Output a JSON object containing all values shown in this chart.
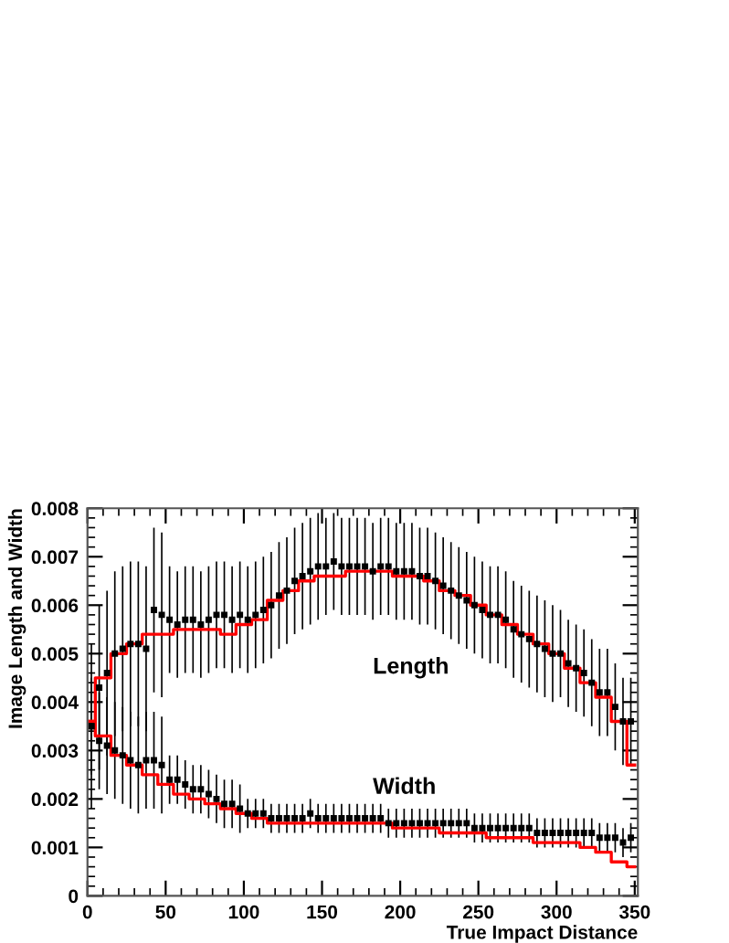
{
  "chart_data": {
    "type": "scatter",
    "xlabel": "True Impact Distance",
    "ylabel": "Image Length and Width",
    "xlim": [
      0,
      352
    ],
    "ylim": [
      0,
      0.008
    ],
    "xticks": [
      0,
      50,
      100,
      150,
      200,
      250,
      300,
      350
    ],
    "yticks": [
      0,
      0.001,
      0.002,
      0.003,
      0.004,
      0.005,
      0.006,
      0.007,
      0.008
    ],
    "grid": false,
    "series": [
      {
        "name": "Length",
        "marker": "square",
        "color": "#000000",
        "x": [
          2.5,
          7.5,
          12.5,
          17.5,
          22.5,
          27.5,
          32.5,
          37.5,
          42.5,
          47.5,
          52.5,
          57.5,
          62.5,
          67.5,
          72.5,
          77.5,
          82.5,
          87.5,
          92.5,
          97.5,
          102.5,
          107.5,
          112.5,
          117.5,
          122.5,
          127.5,
          132.5,
          137.5,
          142.5,
          147.5,
          152.5,
          157.5,
          162.5,
          167.5,
          172.5,
          177.5,
          182.5,
          187.5,
          192.5,
          197.5,
          202.5,
          207.5,
          212.5,
          217.5,
          222.5,
          227.5,
          232.5,
          237.5,
          242.5,
          247.5,
          252.5,
          257.5,
          262.5,
          267.5,
          272.5,
          277.5,
          282.5,
          287.5,
          292.5,
          297.5,
          302.5,
          307.5,
          312.5,
          317.5,
          322.5,
          327.5,
          332.5,
          337.5,
          342.5,
          347.5
        ],
        "values": [
          0.0035,
          0.0043,
          0.0046,
          0.005,
          0.0051,
          0.0052,
          0.0052,
          0.0051,
          0.0059,
          0.0058,
          0.0057,
          0.0056,
          0.0057,
          0.0057,
          0.0056,
          0.0057,
          0.0058,
          0.0058,
          0.0057,
          0.0058,
          0.0057,
          0.0058,
          0.0059,
          0.006,
          0.0062,
          0.0063,
          0.0065,
          0.0066,
          0.0067,
          0.0068,
          0.0068,
          0.0069,
          0.0068,
          0.0068,
          0.0068,
          0.0068,
          0.0067,
          0.0068,
          0.0068,
          0.0067,
          0.0067,
          0.0067,
          0.0066,
          0.0066,
          0.0065,
          0.0064,
          0.0063,
          0.0062,
          0.0061,
          0.006,
          0.0059,
          0.0058,
          0.0058,
          0.0057,
          0.0055,
          0.0054,
          0.0053,
          0.0052,
          0.0051,
          0.005,
          0.005,
          0.0048,
          0.0047,
          0.0046,
          0.0044,
          0.0042,
          0.0042,
          0.0039,
          0.0036,
          0.0036
        ],
        "errors": [
          0.0017,
          0.0017,
          0.0017,
          0.0017,
          0.0017,
          0.0017,
          0.0017,
          0.0017,
          0.0017,
          0.0017,
          0.0011,
          0.0011,
          0.0011,
          0.0011,
          0.0011,
          0.0011,
          0.0011,
          0.0011,
          0.0011,
          0.0011,
          0.0011,
          0.0011,
          0.0011,
          0.0011,
          0.0011,
          0.0011,
          0.0011,
          0.0011,
          0.0011,
          0.0011,
          0.001,
          0.001,
          0.001,
          0.001,
          0.001,
          0.001,
          0.001,
          0.001,
          0.001,
          0.001,
          0.001,
          0.001,
          0.001,
          0.001,
          0.001,
          0.001,
          0.001,
          0.001,
          0.001,
          0.001,
          0.001,
          0.001,
          0.001,
          0.001,
          0.001,
          0.001,
          0.001,
          0.001,
          0.001,
          0.001,
          0.0009,
          0.0009,
          0.0009,
          0.0009,
          0.0009,
          0.0009,
          0.0009,
          0.0009,
          0.0009,
          0.0009
        ]
      },
      {
        "name": "Width",
        "marker": "square",
        "color": "#000000",
        "x": [
          2.5,
          7.5,
          12.5,
          17.5,
          22.5,
          27.5,
          32.5,
          37.5,
          42.5,
          47.5,
          52.5,
          57.5,
          62.5,
          67.5,
          72.5,
          77.5,
          82.5,
          87.5,
          92.5,
          97.5,
          102.5,
          107.5,
          112.5,
          117.5,
          122.5,
          127.5,
          132.5,
          137.5,
          142.5,
          147.5,
          152.5,
          157.5,
          162.5,
          167.5,
          172.5,
          177.5,
          182.5,
          187.5,
          192.5,
          197.5,
          202.5,
          207.5,
          212.5,
          217.5,
          222.5,
          227.5,
          232.5,
          237.5,
          242.5,
          247.5,
          252.5,
          257.5,
          262.5,
          267.5,
          272.5,
          277.5,
          282.5,
          287.5,
          292.5,
          297.5,
          302.5,
          307.5,
          312.5,
          317.5,
          322.5,
          327.5,
          332.5,
          337.5,
          342.5,
          347.5
        ],
        "values": [
          0.0035,
          0.0032,
          0.0031,
          0.003,
          0.0029,
          0.0028,
          0.0027,
          0.0028,
          0.0028,
          0.0027,
          0.0024,
          0.0024,
          0.0023,
          0.0022,
          0.0022,
          0.0021,
          0.002,
          0.0019,
          0.0019,
          0.0018,
          0.0017,
          0.0017,
          0.0017,
          0.0016,
          0.0016,
          0.0016,
          0.0016,
          0.0016,
          0.0017,
          0.0016,
          0.0016,
          0.0016,
          0.0016,
          0.0016,
          0.0016,
          0.0016,
          0.0016,
          0.0016,
          0.0015,
          0.0015,
          0.0015,
          0.0015,
          0.0015,
          0.0015,
          0.0015,
          0.0015,
          0.0015,
          0.0015,
          0.0015,
          0.0014,
          0.0014,
          0.0014,
          0.0014,
          0.0014,
          0.0014,
          0.0014,
          0.0014,
          0.0013,
          0.0013,
          0.0013,
          0.0013,
          0.0013,
          0.0013,
          0.0013,
          0.0013,
          0.0012,
          0.0012,
          0.0012,
          0.0011,
          0.0012
        ],
        "errors": [
          0.001,
          0.001,
          0.001,
          0.001,
          0.001,
          0.001,
          0.001,
          0.001,
          0.001,
          0.001,
          0.0005,
          0.0005,
          0.0005,
          0.0005,
          0.0005,
          0.0005,
          0.0005,
          0.0005,
          0.0005,
          0.0005,
          0.0003,
          0.0003,
          0.0003,
          0.0003,
          0.0003,
          0.0003,
          0.0003,
          0.0003,
          0.0003,
          0.0003,
          0.0003,
          0.0003,
          0.0003,
          0.0003,
          0.0003,
          0.0003,
          0.0003,
          0.0003,
          0.0003,
          0.0003,
          0.0003,
          0.0003,
          0.0003,
          0.0003,
          0.0003,
          0.0003,
          0.0003,
          0.0003,
          0.0003,
          0.0003,
          0.0003,
          0.0003,
          0.0003,
          0.0003,
          0.0003,
          0.0003,
          0.0003,
          0.0003,
          0.0003,
          0.0003,
          0.0003,
          0.0003,
          0.0003,
          0.0003,
          0.0003,
          0.0003,
          0.0003,
          0.0003,
          0.0003,
          0.0003
        ]
      },
      {
        "type": "step",
        "color": "#ff0000",
        "x": [
          0,
          10,
          20,
          30,
          40,
          50,
          60,
          70,
          80,
          90,
          100,
          110,
          120,
          130,
          140,
          150,
          160,
          170,
          180,
          190,
          200,
          210,
          220,
          230,
          240,
          250,
          260,
          270,
          280,
          290,
          300,
          310,
          320,
          330,
          340,
          350
        ],
        "values": [
          0.0036,
          0.0045,
          0.005,
          0.0052,
          0.0054,
          0.0054,
          0.0055,
          0.0055,
          0.0055,
          0.0054,
          0.0056,
          0.0057,
          0.0061,
          0.0063,
          0.0065,
          0.0066,
          0.0066,
          0.0067,
          0.0067,
          0.0067,
          0.0066,
          0.0066,
          0.0065,
          0.0063,
          0.0062,
          0.006,
          0.0058,
          0.0056,
          0.0054,
          0.0052,
          0.005,
          0.0047,
          0.0044,
          0.0041,
          0.0036,
          0.0027
        ]
      },
      {
        "type": "step",
        "color": "#ff0000",
        "x": [
          0,
          10,
          20,
          30,
          40,
          50,
          60,
          70,
          80,
          90,
          100,
          110,
          120,
          130,
          140,
          150,
          160,
          170,
          180,
          190,
          200,
          210,
          220,
          230,
          240,
          250,
          260,
          270,
          280,
          290,
          300,
          310,
          320,
          330,
          340,
          350
        ],
        "values": [
          0.0036,
          0.0033,
          0.0029,
          0.0027,
          0.0025,
          0.0023,
          0.0021,
          0.002,
          0.0019,
          0.0018,
          0.0017,
          0.0016,
          0.0015,
          0.0015,
          0.0015,
          0.0015,
          0.0015,
          0.0015,
          0.0015,
          0.0015,
          0.0014,
          0.0014,
          0.0014,
          0.0013,
          0.0013,
          0.0013,
          0.0012,
          0.0012,
          0.0012,
          0.0011,
          0.0011,
          0.0011,
          0.001,
          0.0009,
          0.0007,
          0.0006
        ]
      }
    ]
  }
}
